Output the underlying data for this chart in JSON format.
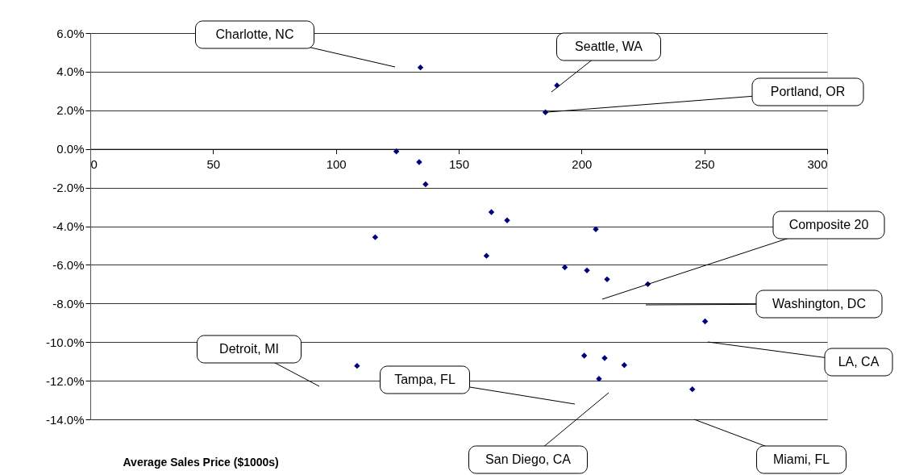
{
  "chart_data": {
    "type": "scatter",
    "xlabel": "Average Sales Price ($1000s)",
    "x": [
      134.4,
      190,
      185.3,
      124.6,
      133.9,
      136.5,
      116,
      163.3,
      169.7,
      205.8,
      161.3,
      193.2,
      202.2,
      210.4,
      227,
      250.3,
      201.1,
      209.4,
      217.4,
      207.1,
      245.1,
      108.6
    ],
    "series": [
      {
        "color": "#000080",
        "values": [
          4.22,
          3.29,
          1.9,
          -0.13,
          -0.68,
          -1.83,
          -4.57,
          -3.27,
          -3.7,
          -4.16,
          -5.53,
          -6.13,
          -6.29,
          -6.75,
          -7.0,
          -8.93,
          -10.7,
          -10.83,
          -11.19,
          -11.9,
          -12.44,
          -11.23
        ]
      }
    ],
    "marker": "diamond",
    "grid": "y",
    "xlim": [
      0,
      300
    ],
    "xticks": [
      0,
      50,
      100,
      150,
      200,
      250,
      300
    ],
    "ylim": [
      -14,
      6
    ],
    "yticks": [
      {
        "value": 6,
        "label": "6.0%"
      },
      {
        "value": 4,
        "label": "4.0%"
      },
      {
        "value": 2,
        "label": "2.0%"
      },
      {
        "value": 0,
        "label": "0.0%"
      },
      {
        "value": -2,
        "label": "-2.0%"
      },
      {
        "value": -4,
        "label": "-4.0%"
      },
      {
        "value": -6,
        "label": "-6.0%"
      },
      {
        "value": -8,
        "label": "-8.0%"
      },
      {
        "value": -10,
        "label": "-10.0%"
      },
      {
        "value": -12,
        "label": "-12.0%"
      },
      {
        "value": -14,
        "label": "-14.0%"
      }
    ],
    "annotations": [
      "Charlotte, NC",
      "Seattle, WA",
      {
        "text": "Portland, OR",
        "x": 185.3,
        "y": 1.9
      },
      "Composite 20",
      "Washington, DC",
      "LA, CA",
      "Detroit, MI",
      "Tampa, FL",
      "San Diego, CA",
      "Miami, FL"
    ]
  }
}
